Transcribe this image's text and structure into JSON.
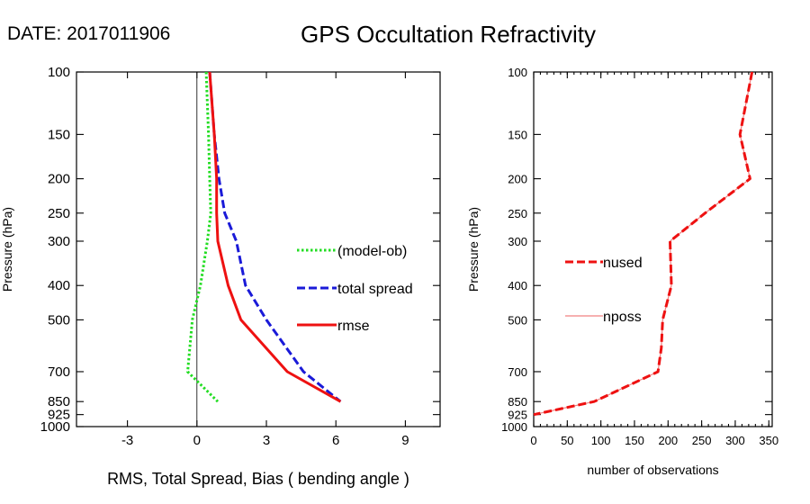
{
  "header": {
    "date_label": "DATE: 2017011906",
    "title": "GPS Occultation Refractivity"
  },
  "chart_data": [
    {
      "id": "left",
      "type": "line",
      "ylabel": "Pressure (hPa)",
      "xlabel": "RMS, Total Spread, Bias ( bending angle )",
      "y_scale": "log",
      "y_reversed": true,
      "ylim": [
        1000,
        100
      ],
      "xlim": [
        -5.2,
        10.5
      ],
      "xticks": [
        -3,
        0,
        3,
        6,
        9
      ],
      "xtick_labels": [
        "-3",
        "0",
        "3",
        "6",
        "9"
      ],
      "yticks": [
        100,
        150,
        200,
        250,
        300,
        400,
        500,
        700,
        850,
        925,
        1000
      ],
      "ytick_labels": [
        "100",
        "150",
        "200",
        "250",
        "300",
        "400",
        "500",
        "700",
        "850",
        "925",
        "1000"
      ],
      "zero_line": 0,
      "legend_position": "right",
      "series": [
        {
          "name": "(model-ob)",
          "color": "#22dd22",
          "style": "dotted",
          "x": [
            0.4,
            0.5,
            0.55,
            0.6,
            0.45,
            0.15,
            -0.2,
            -0.4,
            0.9
          ],
          "y": [
            100,
            150,
            200,
            250,
            300,
            400,
            500,
            700,
            850
          ]
        },
        {
          "name": "total spread",
          "color": "#1a1ad8",
          "style": "dashed",
          "x": [
            0.55,
            0.75,
            0.95,
            1.2,
            1.7,
            2.1,
            3.0,
            4.6,
            6.2
          ],
          "y": [
            100,
            150,
            200,
            250,
            300,
            400,
            500,
            700,
            850
          ]
        },
        {
          "name": "rmse",
          "color": "#ee1111",
          "style": "solid",
          "x": [
            0.55,
            0.75,
            0.85,
            0.85,
            0.9,
            1.35,
            1.9,
            3.9,
            6.2
          ],
          "y": [
            100,
            150,
            200,
            250,
            300,
            400,
            500,
            700,
            850
          ]
        }
      ]
    },
    {
      "id": "right",
      "type": "line",
      "ylabel": "Pressure (hPa)",
      "xlabel": "number of observations",
      "y_scale": "log",
      "y_reversed": true,
      "ylim": [
        1000,
        100
      ],
      "xlim": [
        0,
        355
      ],
      "xticks": [
        0,
        50,
        100,
        150,
        200,
        250,
        300,
        350
      ],
      "xtick_labels": [
        "0",
        "50",
        "100",
        "150",
        "200",
        "250",
        "300",
        "350"
      ],
      "yticks": [
        100,
        150,
        200,
        250,
        300,
        400,
        500,
        700,
        850,
        925,
        1000
      ],
      "ytick_labels": [
        "100",
        "150",
        "200",
        "250",
        "300",
        "400",
        "500",
        "700",
        "850",
        "925",
        "1000"
      ],
      "legend_position": "left",
      "series": [
        {
          "name": "nused",
          "color": "#ee1111",
          "style": "dashed",
          "x": [
            325,
            307,
            322,
            255,
            203,
            205,
            192,
            190,
            185,
            90,
            0
          ],
          "y": [
            100,
            150,
            200,
            250,
            300,
            400,
            500,
            600,
            700,
            850,
            925
          ]
        },
        {
          "name": "nposs",
          "color": "#f08080",
          "style": "solid",
          "x": [
            325,
            307,
            322,
            255,
            203,
            205,
            192,
            190,
            185,
            90,
            0
          ],
          "y": [
            100,
            150,
            200,
            250,
            300,
            400,
            500,
            600,
            700,
            850,
            925
          ]
        }
      ]
    }
  ]
}
